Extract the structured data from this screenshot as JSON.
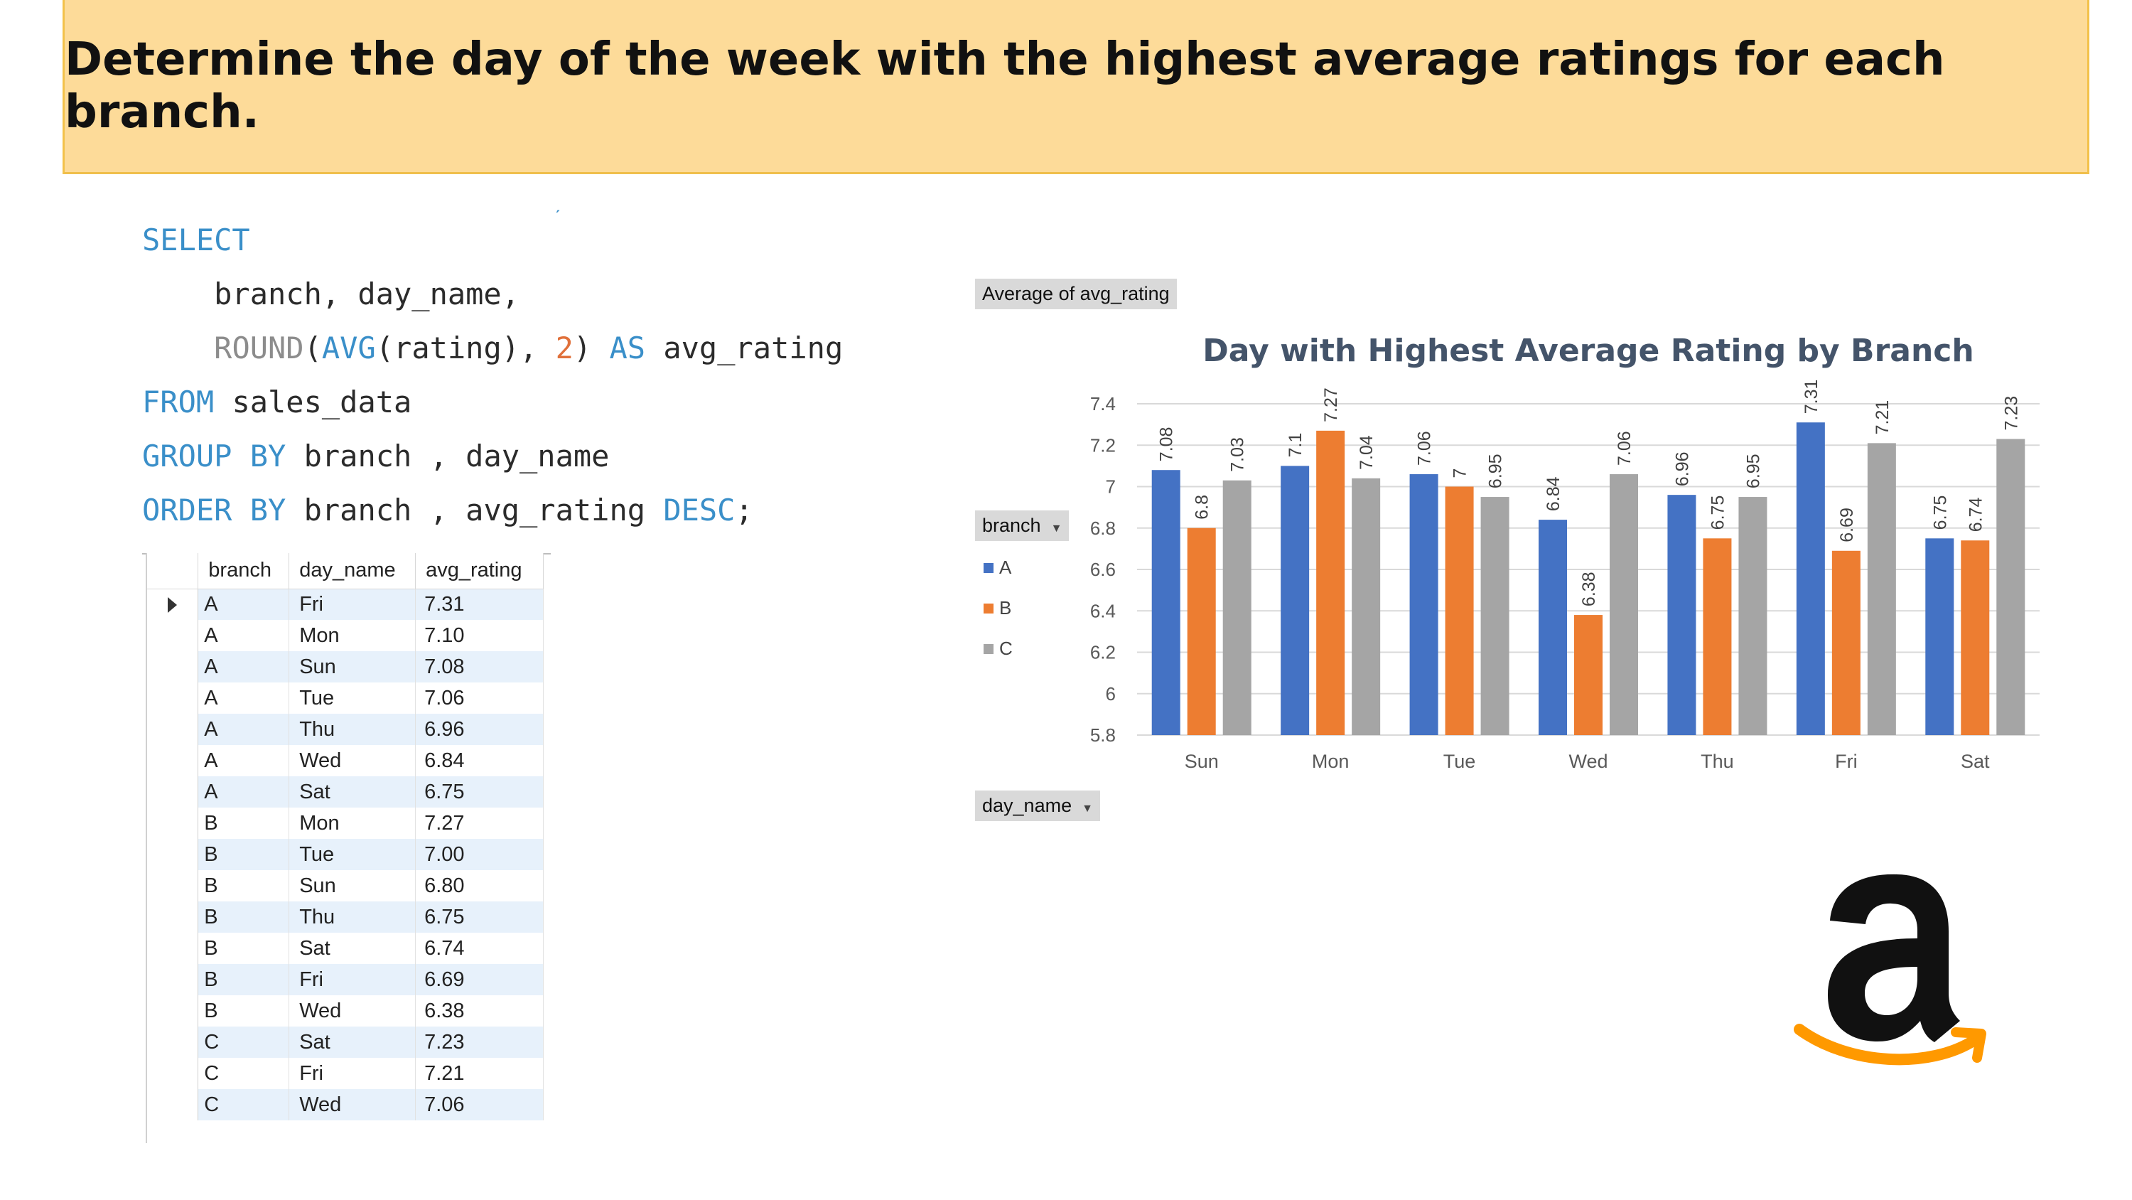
{
  "banner": {
    "title": "Determine the day of the week with the highest average ratings for each branch."
  },
  "sql": {
    "lines": [
      [
        {
          "t": "SELECT",
          "c": "kw"
        }
      ],
      [
        {
          "t": "    branch, day_name,",
          "c": ""
        }
      ],
      [
        {
          "t": "    ",
          "c": ""
        },
        {
          "t": "ROUND",
          "c": "fn"
        },
        {
          "t": "(",
          "c": ""
        },
        {
          "t": "AVG",
          "c": "kw"
        },
        {
          "t": "(rating), ",
          "c": ""
        },
        {
          "t": "2",
          "c": "num"
        },
        {
          "t": ") ",
          "c": ""
        },
        {
          "t": "AS",
          "c": "kw"
        },
        {
          "t": " avg_rating",
          "c": ""
        }
      ],
      [
        {
          "t": "FROM",
          "c": "kw"
        },
        {
          "t": " sales_data",
          "c": ""
        }
      ],
      [
        {
          "t": "GROUP BY",
          "c": "kw"
        },
        {
          "t": " branch , day_name",
          "c": ""
        }
      ],
      [
        {
          "t": "ORDER BY",
          "c": "kw"
        },
        {
          "t": " branch , avg_rating ",
          "c": ""
        },
        {
          "t": "DESC",
          "c": "kw"
        },
        {
          "t": ";",
          "c": ""
        }
      ]
    ]
  },
  "result_grid": {
    "columns": [
      "branch",
      "day_name",
      "avg_rating"
    ],
    "rows": [
      [
        "A",
        "Fri",
        "7.31"
      ],
      [
        "A",
        "Mon",
        "7.10"
      ],
      [
        "A",
        "Sun",
        "7.08"
      ],
      [
        "A",
        "Tue",
        "7.06"
      ],
      [
        "A",
        "Thu",
        "6.96"
      ],
      [
        "A",
        "Wed",
        "6.84"
      ],
      [
        "A",
        "Sat",
        "6.75"
      ],
      [
        "B",
        "Mon",
        "7.27"
      ],
      [
        "B",
        "Tue",
        "7.00"
      ],
      [
        "B",
        "Sun",
        "6.80"
      ],
      [
        "B",
        "Thu",
        "6.75"
      ],
      [
        "B",
        "Sat",
        "6.74"
      ],
      [
        "B",
        "Fri",
        "6.69"
      ],
      [
        "B",
        "Wed",
        "6.38"
      ],
      [
        "C",
        "Sat",
        "7.23"
      ],
      [
        "C",
        "Fri",
        "7.21"
      ],
      [
        "C",
        "Wed",
        "7.06"
      ]
    ]
  },
  "pivot": {
    "value_field": "Average of avg_rating",
    "legend_field": "branch",
    "axis_field": "day_name"
  },
  "chart_data": {
    "type": "bar",
    "title": "Day with Highest Average Rating by Branch",
    "categories": [
      "Sun",
      "Mon",
      "Tue",
      "Wed",
      "Thu",
      "Fri",
      "Sat"
    ],
    "series": [
      {
        "name": "A",
        "color": "#4472c4",
        "values": [
          7.08,
          7.1,
          7.06,
          6.84,
          6.96,
          7.31,
          6.75
        ],
        "labels": [
          "7.08",
          "7.1",
          "7.06",
          "6.84",
          "6.96",
          "7.31",
          "6.75"
        ]
      },
      {
        "name": "B",
        "color": "#ed7d31",
        "values": [
          6.8,
          7.27,
          7,
          6.38,
          6.75,
          6.69,
          6.74
        ],
        "labels": [
          "6.8",
          "7.27",
          "7",
          "6.38",
          "6.75",
          "6.69",
          "6.74"
        ]
      },
      {
        "name": "C",
        "color": "#a5a5a5",
        "values": [
          7.03,
          7.04,
          6.95,
          7.06,
          6.95,
          7.21,
          7.23
        ],
        "labels": [
          "7.03",
          "7.04",
          "6.95",
          "7.06",
          "6.95",
          "7.21",
          "7.23"
        ]
      }
    ],
    "ylim": [
      5.8,
      7.4
    ],
    "yticks": [
      "5.8",
      "6",
      "6.2",
      "6.4",
      "6.6",
      "6.8",
      "7",
      "7.2",
      "7.4"
    ],
    "grid": true,
    "legend": "left"
  },
  "colors": {
    "banner": "#fddb99",
    "keyword": "#3a8fc9",
    "amazon_orange": "#ff9900"
  },
  "icons": [
    "dropdown-arrow-icon",
    "row-selector-icon",
    "amazon-logo"
  ]
}
